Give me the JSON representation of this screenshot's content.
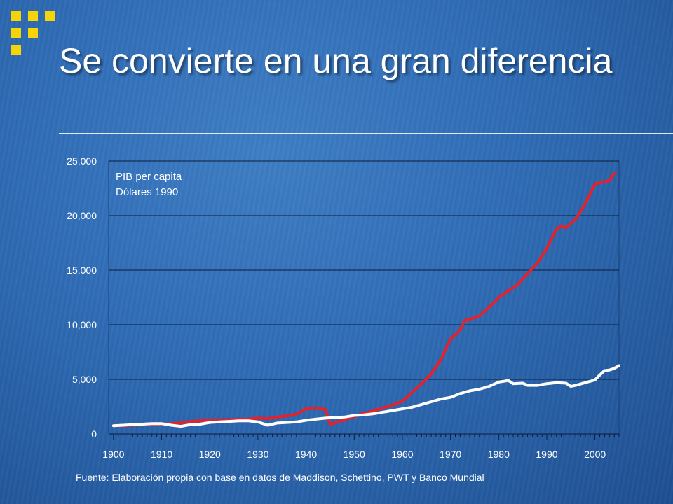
{
  "slide": {
    "title": "Se convierte en una gran diferencia",
    "source": "Fuente: Elaboración propia con base en datos de Maddison, Schettino, PWT y Banco Mundial"
  },
  "colors": {
    "accent_squares": "#f5d40a",
    "series_red": "#e8202a",
    "series_white": "#ffffff",
    "text": "#ffffff"
  },
  "chart_data": {
    "type": "line",
    "annotation": [
      "PIB per capita",
      "Dólares 1990"
    ],
    "xlabel": "",
    "ylabel": "",
    "xlim": [
      1899,
      2005
    ],
    "ylim": [
      0,
      25000
    ],
    "xticks": [
      1900,
      1910,
      1920,
      1930,
      1940,
      1950,
      1960,
      1970,
      1980,
      1990,
      2000
    ],
    "xtick_labels": [
      "1900",
      "1910",
      "1920",
      "1930",
      "1940",
      "1950",
      "1960",
      "1970",
      "1980",
      "1990",
      "2000"
    ],
    "yticks": [
      0,
      5000,
      10000,
      15000,
      20000,
      25000
    ],
    "ytick_labels": [
      "0",
      "5,000",
      "10,000",
      "15,000",
      "20,000",
      "25,000"
    ],
    "grid": "horizontal",
    "legend": "none",
    "series": [
      {
        "color": "#e8202a",
        "points": [
          [
            1900,
            780
          ],
          [
            1902,
            750
          ],
          [
            1904,
            800
          ],
          [
            1906,
            830
          ],
          [
            1908,
            880
          ],
          [
            1910,
            900
          ],
          [
            1912,
            950
          ],
          [
            1914,
            1000
          ],
          [
            1916,
            1150
          ],
          [
            1918,
            1200
          ],
          [
            1920,
            1250
          ],
          [
            1922,
            1300
          ],
          [
            1924,
            1300
          ],
          [
            1926,
            1350
          ],
          [
            1928,
            1350
          ],
          [
            1930,
            1450
          ],
          [
            1932,
            1400
          ],
          [
            1934,
            1550
          ],
          [
            1936,
            1650
          ],
          [
            1938,
            1800
          ],
          [
            1940,
            2300
          ],
          [
            1942,
            2350
          ],
          [
            1944,
            2250
          ],
          [
            1945,
            900
          ],
          [
            1946,
            1000
          ],
          [
            1948,
            1300
          ],
          [
            1950,
            1600
          ],
          [
            1952,
            1900
          ],
          [
            1954,
            2100
          ],
          [
            1956,
            2400
          ],
          [
            1958,
            2650
          ],
          [
            1960,
            3000
          ],
          [
            1962,
            3800
          ],
          [
            1964,
            4600
          ],
          [
            1966,
            5500
          ],
          [
            1968,
            6800
          ],
          [
            1970,
            8700
          ],
          [
            1972,
            9500
          ],
          [
            1973,
            10400
          ],
          [
            1974,
            10500
          ],
          [
            1976,
            10800
          ],
          [
            1978,
            11600
          ],
          [
            1980,
            12500
          ],
          [
            1982,
            13100
          ],
          [
            1984,
            13700
          ],
          [
            1986,
            14700
          ],
          [
            1988,
            15600
          ],
          [
            1990,
            17000
          ],
          [
            1992,
            18800
          ],
          [
            1993,
            19000
          ],
          [
            1994,
            18900
          ],
          [
            1996,
            19700
          ],
          [
            1998,
            21100
          ],
          [
            2000,
            22900
          ],
          [
            2002,
            23100
          ],
          [
            2003,
            23200
          ],
          [
            2004,
            23900
          ]
        ]
      },
      {
        "color": "#ffffff",
        "points": [
          [
            1900,
            750
          ],
          [
            1902,
            800
          ],
          [
            1904,
            850
          ],
          [
            1906,
            900
          ],
          [
            1908,
            950
          ],
          [
            1910,
            950
          ],
          [
            1912,
            800
          ],
          [
            1914,
            700
          ],
          [
            1916,
            850
          ],
          [
            1918,
            900
          ],
          [
            1920,
            1050
          ],
          [
            1922,
            1100
          ],
          [
            1924,
            1150
          ],
          [
            1926,
            1200
          ],
          [
            1928,
            1200
          ],
          [
            1930,
            1100
          ],
          [
            1932,
            800
          ],
          [
            1934,
            1000
          ],
          [
            1936,
            1050
          ],
          [
            1938,
            1100
          ],
          [
            1940,
            1250
          ],
          [
            1942,
            1350
          ],
          [
            1944,
            1450
          ],
          [
            1946,
            1500
          ],
          [
            1948,
            1550
          ],
          [
            1950,
            1700
          ],
          [
            1952,
            1750
          ],
          [
            1954,
            1850
          ],
          [
            1956,
            2000
          ],
          [
            1958,
            2150
          ],
          [
            1960,
            2300
          ],
          [
            1962,
            2450
          ],
          [
            1964,
            2700
          ],
          [
            1966,
            2950
          ],
          [
            1968,
            3200
          ],
          [
            1970,
            3350
          ],
          [
            1972,
            3700
          ],
          [
            1974,
            3950
          ],
          [
            1976,
            4100
          ],
          [
            1978,
            4350
          ],
          [
            1980,
            4750
          ],
          [
            1982,
            4900
          ],
          [
            1983,
            4600
          ],
          [
            1985,
            4650
          ],
          [
            1986,
            4450
          ],
          [
            1988,
            4450
          ],
          [
            1990,
            4600
          ],
          [
            1992,
            4700
          ],
          [
            1994,
            4650
          ],
          [
            1995,
            4350
          ],
          [
            1996,
            4450
          ],
          [
            1998,
            4700
          ],
          [
            2000,
            4950
          ],
          [
            2001,
            5400
          ],
          [
            2002,
            5800
          ],
          [
            2003,
            5850
          ],
          [
            2004,
            6000
          ],
          [
            2005,
            6250
          ]
        ]
      }
    ]
  }
}
